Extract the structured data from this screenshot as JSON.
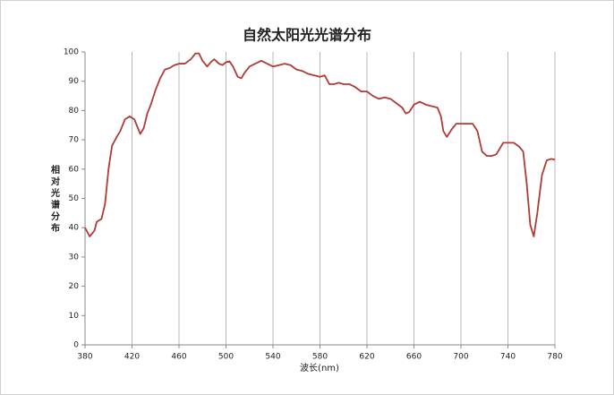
{
  "chart_data": {
    "type": "line",
    "title": "自然太阳光光谱分布",
    "x_label": "波长(nm)",
    "y_label": "相对光谱分布",
    "xlim": [
      380,
      780
    ],
    "xticks": [
      380,
      420,
      460,
      500,
      540,
      580,
      620,
      660,
      700,
      740,
      780
    ],
    "ylim": [
      0,
      100
    ],
    "yticks": [
      0,
      10,
      20,
      30,
      40,
      50,
      60,
      70,
      80,
      90,
      100
    ],
    "grid": "x",
    "series": [
      {
        "color": "#b03a35",
        "x": [
          380,
          384,
          388,
          390,
          394,
          397,
          400,
          403,
          407,
          410,
          414,
          418,
          422,
          425,
          427,
          430,
          433,
          436,
          440,
          444,
          448,
          452,
          456,
          460,
          465,
          470,
          474,
          477,
          480,
          484,
          487,
          490,
          494,
          497,
          500,
          503,
          506,
          510,
          513,
          516,
          520,
          525,
          530,
          535,
          540,
          545,
          550,
          555,
          560,
          565,
          570,
          575,
          580,
          584,
          588,
          592,
          596,
          600,
          605,
          610,
          615,
          620,
          625,
          630,
          635,
          640,
          645,
          650,
          653,
          656,
          660,
          665,
          670,
          675,
          680,
          683,
          685,
          688,
          692,
          696,
          700,
          705,
          710,
          714,
          718,
          722,
          726,
          730,
          733,
          736,
          740,
          745,
          750,
          753,
          756,
          759,
          762,
          765,
          769,
          773,
          777,
          780
        ],
        "values": [
          40,
          37,
          39,
          42,
          43,
          48,
          60,
          68,
          71,
          73,
          77,
          78,
          77,
          74,
          72,
          74,
          79,
          82,
          87,
          91,
          94,
          94.5,
          95.5,
          96,
          96,
          97.5,
          99.5,
          99.5,
          97,
          95,
          96.5,
          97.5,
          96,
          95.5,
          96.5,
          96.8,
          95,
          91.5,
          91,
          93,
          95,
          96,
          97,
          96,
          95,
          95.5,
          96,
          95.5,
          94,
          93.5,
          92.5,
          92,
          91.5,
          92,
          89,
          89,
          89.5,
          89,
          89,
          88,
          86.5,
          86.5,
          85,
          84,
          84.5,
          84,
          82.5,
          81,
          79,
          79.5,
          82,
          83,
          82,
          81.5,
          81,
          78,
          73,
          71,
          73.5,
          75.5,
          75.5,
          75.5,
          75.5,
          73,
          66,
          64.5,
          64.5,
          65,
          67,
          69,
          69,
          69,
          67.5,
          66,
          55,
          41,
          37,
          45,
          58,
          63,
          63.5,
          63.2
        ]
      }
    ]
  }
}
